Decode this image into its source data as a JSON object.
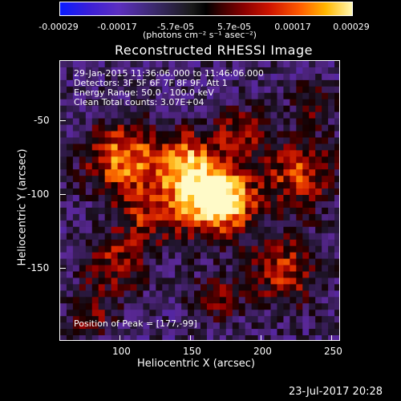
{
  "colorbar": {
    "ticks": [
      "-0.00029",
      "-0.00017",
      "-5.7e-05",
      "5.7e-05",
      "0.00017",
      "0.00029"
    ],
    "units": "(photons cm⁻² s⁻¹ asec⁻²)"
  },
  "title": "Reconstructed RHESSI Image",
  "info": {
    "time": "29-Jan-2015 11:36:06.000 to 11:46:06.000",
    "detectors": "Detectors: 3F 5F 6F 7F 8F 9F, Att 1",
    "energy": "Energy Range: 50.0 - 100.0 keV",
    "counts": "Clean    Total counts: 3.07E+04",
    "peak": "Position of Peak = [177,-99]"
  },
  "axes": {
    "xlabel": "Heliocentric X (arcsec)",
    "ylabel": "Heliocentric Y (arcsec)",
    "xticks": [
      "100",
      "150",
      "200",
      "250"
    ],
    "yticks": [
      "-50",
      "-100",
      "-150"
    ]
  },
  "footer": {
    "date": "23-Jul-2017 20:28"
  }
}
